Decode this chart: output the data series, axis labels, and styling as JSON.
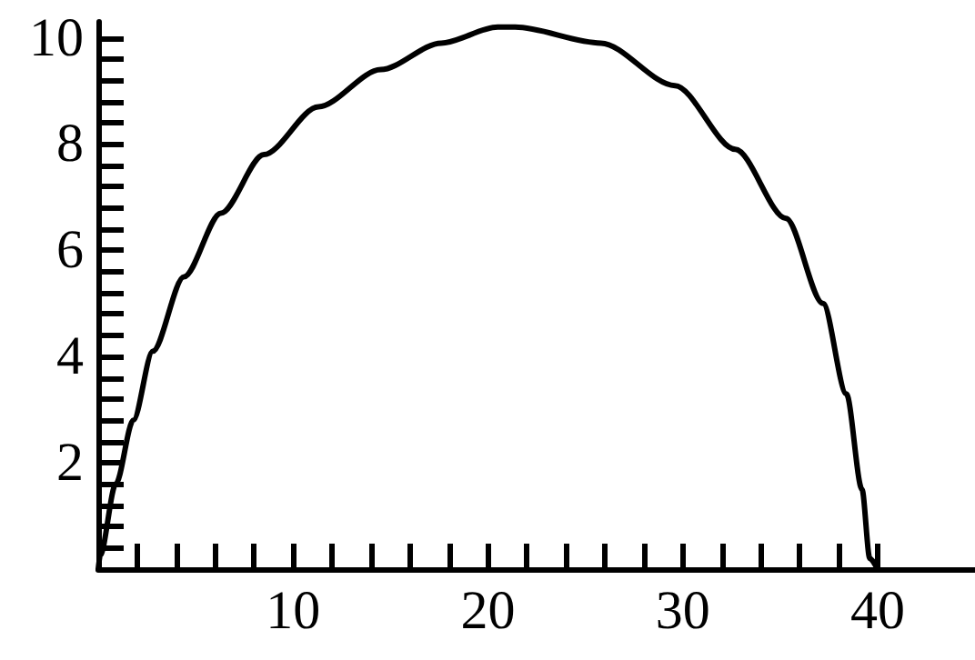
{
  "chart_data": {
    "type": "line",
    "x": [
      0,
      0.1,
      0.9,
      1.8,
      2.8,
      4.4,
      6.3,
      8.5,
      11.3,
      14.5,
      17.6,
      20.5,
      21.4,
      25.8,
      29.6,
      32.7,
      35.3,
      37.2,
      38.4,
      39.2,
      39.6,
      40
    ],
    "series": [
      {
        "color": "#000000",
        "values": [
          0,
          0.26,
          1.6,
          2.8,
          4.1,
          5.5,
          6.7,
          7.8,
          8.7,
          9.4,
          9.9,
          10.2,
          10.2,
          9.9,
          9.1,
          7.9,
          6.6,
          5.0,
          3.3,
          1.5,
          0.2,
          0
        ]
      }
    ],
    "xlim": [
      0,
      45
    ],
    "ylim": [
      0,
      10.3
    ],
    "xticks": [
      {
        "value": 2,
        "label": null
      },
      {
        "value": 4,
        "label": null
      },
      {
        "value": 6,
        "label": null
      },
      {
        "value": 8,
        "label": null
      },
      10,
      {
        "value": 12,
        "label": null
      },
      {
        "value": 14,
        "label": null
      },
      {
        "value": 16,
        "label": null
      },
      {
        "value": 18,
        "label": null
      },
      20,
      {
        "value": 22,
        "label": null
      },
      {
        "value": 24,
        "label": null
      },
      {
        "value": 26,
        "label": null
      },
      {
        "value": 28,
        "label": null
      },
      30,
      {
        "value": 32,
        "label": null
      },
      {
        "value": 34,
        "label": null
      },
      {
        "value": 36,
        "label": null
      },
      {
        "value": 38,
        "label": null
      },
      40
    ],
    "yticks": [
      {
        "value": 0.4,
        "label": null
      },
      {
        "value": 0.8,
        "label": null
      },
      {
        "value": 1.2,
        "label": null
      },
      {
        "value": 1.6,
        "label": null
      },
      2,
      {
        "value": 2.4,
        "label": null
      },
      {
        "value": 2.8,
        "label": null
      },
      {
        "value": 3.2,
        "label": null
      },
      {
        "value": 3.6,
        "label": null
      },
      4,
      {
        "value": 4.4,
        "label": null
      },
      {
        "value": 4.8,
        "label": null
      },
      {
        "value": 5.2,
        "label": null
      },
      {
        "value": 5.6,
        "label": null
      },
      6,
      {
        "value": 6.4,
        "label": null
      },
      {
        "value": 6.8,
        "label": null
      },
      {
        "value": 7.2,
        "label": null
      },
      {
        "value": 7.6,
        "label": null
      },
      8,
      {
        "value": 8.4,
        "label": null
      },
      {
        "value": 8.8,
        "label": null
      },
      {
        "value": 9.2,
        "label": null
      },
      {
        "value": 9.6,
        "label": null
      },
      10
    ],
    "grid": false,
    "marker": "none",
    "line_style": "solid"
  }
}
